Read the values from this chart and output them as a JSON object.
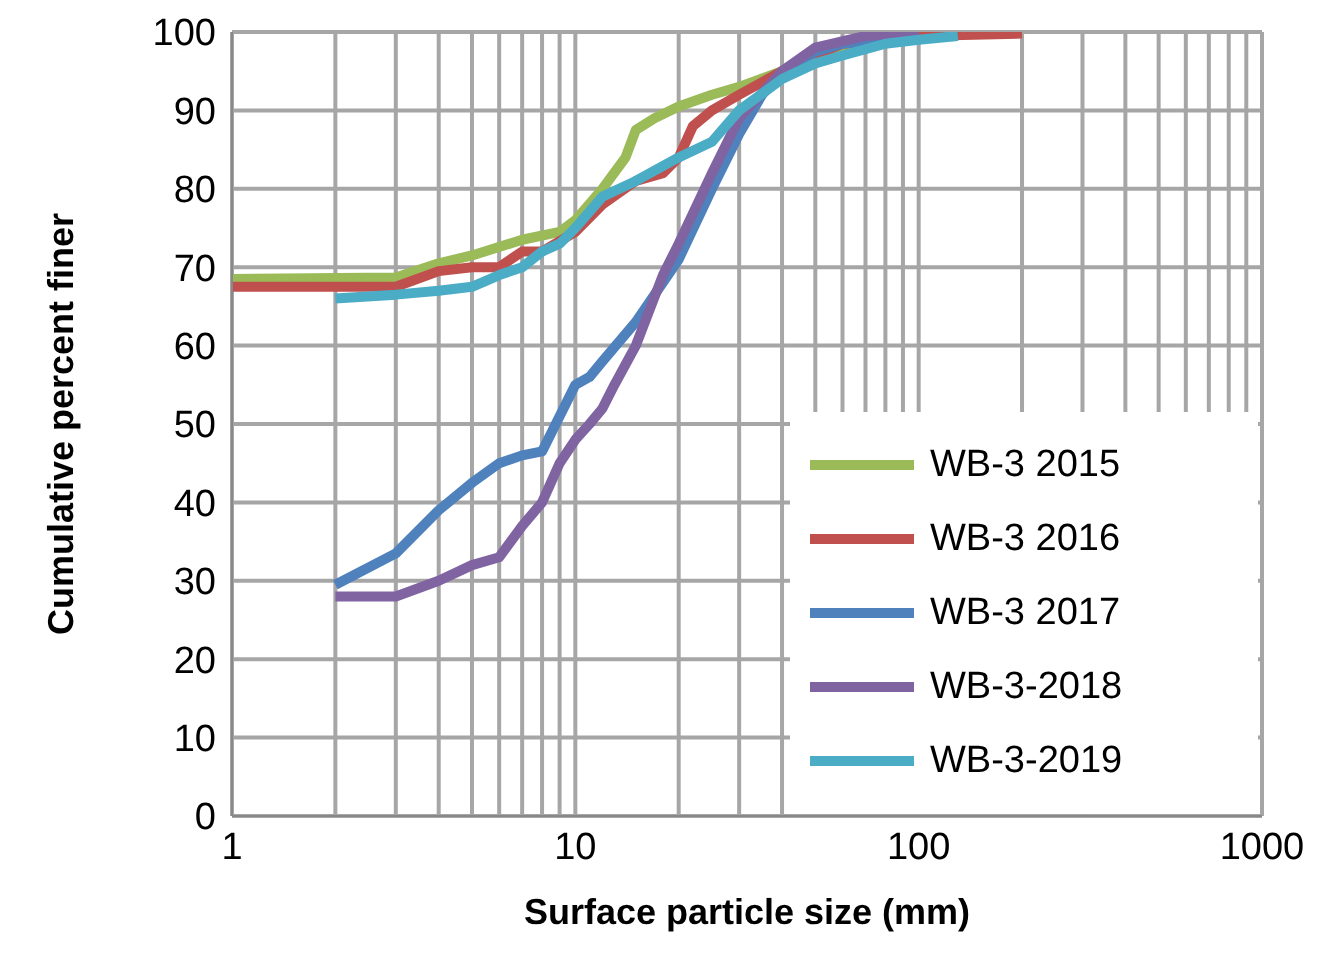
{
  "chart_data": {
    "type": "line",
    "xlabel": "Surface particle size (mm)",
    "ylabel": "Cumulative percent finer",
    "log": "x",
    "xlim": [
      1,
      1000
    ],
    "xticks": [
      1,
      {
        "value": 2,
        "label": null
      },
      {
        "value": 3,
        "label": null
      },
      {
        "value": 4,
        "label": null
      },
      {
        "value": 5,
        "label": null
      },
      {
        "value": 6,
        "label": null
      },
      {
        "value": 7,
        "label": null
      },
      {
        "value": 8,
        "label": null
      },
      {
        "value": 9,
        "label": null
      },
      10,
      {
        "value": 20,
        "label": null
      },
      {
        "value": 30,
        "label": null
      },
      {
        "value": 40,
        "label": null
      },
      {
        "value": 50,
        "label": null
      },
      {
        "value": 60,
        "label": null
      },
      {
        "value": 70,
        "label": null
      },
      {
        "value": 80,
        "label": null
      },
      {
        "value": 90,
        "label": null
      },
      100,
      {
        "value": 200,
        "label": null
      },
      {
        "value": 300,
        "label": null
      },
      {
        "value": 400,
        "label": null
      },
      {
        "value": 500,
        "label": null
      },
      {
        "value": 600,
        "label": null
      },
      {
        "value": 700,
        "label": null
      },
      {
        "value": 800,
        "label": null
      },
      {
        "value": 900,
        "label": null
      },
      1000
    ],
    "ylim": [
      0,
      100
    ],
    "yticks": [
      0,
      10,
      20,
      30,
      40,
      50,
      60,
      70,
      80,
      90,
      100
    ],
    "grid": true,
    "legend": "bottom right",
    "marker": "none",
    "line_style": "solid",
    "series": [
      {
        "name": "WB-3 2015",
        "color": "#9bbb59",
        "x": [
          1,
          3,
          4,
          5,
          7,
          9,
          10,
          12,
          14,
          15,
          17,
          20,
          25,
          30,
          40,
          50,
          60,
          80,
          100
        ],
        "values": [
          68.5,
          68.7,
          70.5,
          71.5,
          73.5,
          74.5,
          76,
          80,
          84,
          87.5,
          89,
          90.5,
          92,
          93,
          95,
          97,
          98,
          99,
          99.5
        ]
      },
      {
        "name": "WB-3 2016",
        "color": "#c0504d",
        "x": [
          1,
          3,
          4,
          5,
          6,
          7,
          8,
          10,
          12,
          15,
          18,
          20,
          22,
          25,
          30,
          40,
          50,
          60,
          100,
          200
        ],
        "values": [
          67.5,
          67.5,
          69.5,
          70,
          70,
          72,
          72,
          74.5,
          78,
          81,
          82,
          84,
          88,
          90,
          92,
          95,
          97,
          98.5,
          99.5,
          99.8
        ]
      },
      {
        "name": "WB-3 2017",
        "color": "#4f81bd",
        "x": [
          2,
          3,
          4,
          5,
          6,
          7,
          8,
          9,
          10,
          11,
          12,
          15,
          20,
          25,
          30,
          35,
          40,
          50,
          60,
          100
        ],
        "values": [
          29.5,
          33.5,
          39,
          42.5,
          45,
          46,
          46.5,
          51,
          55,
          56,
          58,
          63,
          71,
          80,
          87,
          92,
          95,
          97.5,
          98.5,
          99.5
        ]
      },
      {
        "name": "WB-3-2018",
        "color": "#8064a2",
        "x": [
          2,
          3,
          4,
          5,
          6,
          7,
          8,
          9,
          10,
          11,
          12,
          13,
          15,
          18,
          20,
          25,
          30,
          40,
          50,
          70,
          100
        ],
        "values": [
          28,
          28,
          30,
          32,
          33,
          37,
          40,
          45,
          48,
          50,
          52,
          55,
          60,
          69,
          73,
          82,
          89,
          95,
          98,
          99.5,
          100
        ]
      },
      {
        "name": "WB-3-2019",
        "color": "#4bacc6",
        "x": [
          2,
          3,
          4,
          5,
          6,
          7,
          8,
          9,
          10,
          12,
          15,
          20,
          25,
          30,
          40,
          50,
          60,
          80,
          100,
          130
        ],
        "values": [
          66,
          66.5,
          67,
          67.5,
          69,
          70,
          72,
          73,
          75,
          79,
          81,
          84,
          86,
          90,
          94,
          96,
          97,
          98.5,
          99,
          99.5
        ]
      }
    ]
  }
}
